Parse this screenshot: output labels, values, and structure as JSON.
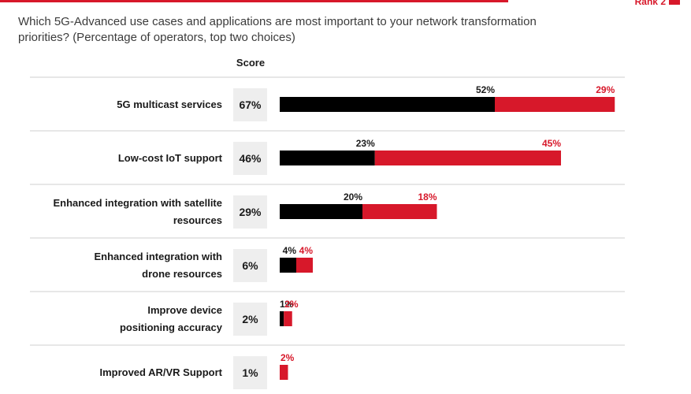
{
  "header": {
    "legend_rank2_label": "Rank 2",
    "question": "Which 5G-Advanced use cases and applications are most important to your network transformation priorities? (Percentage of operators, top two choices)"
  },
  "colors": {
    "rank1": "#000000",
    "rank2": "#d7182a",
    "score_box": "#eeeeee",
    "divider": "#cfcfcf"
  },
  "chart_data": {
    "type": "bar",
    "orientation": "horizontal",
    "stacked": true,
    "title": "",
    "score_header": "Score",
    "categories": [
      [
        "5G multicast services"
      ],
      [
        "Low-cost IoT support"
      ],
      [
        "Enhanced integration with satellite",
        "resources"
      ],
      [
        "Enhanced integration with",
        "drone resources"
      ],
      [
        "Improve device",
        "positioning accuracy"
      ],
      [
        "Improved AR/VR Support"
      ]
    ],
    "scores": [
      "67%",
      "46%",
      "29%",
      "6%",
      "2%",
      "1%"
    ],
    "series": [
      {
        "name": "",
        "color": "#000000",
        "values": [
          52,
          23,
          20,
          4,
          1,
          0
        ],
        "labels": [
          "52%",
          "23%",
          "20%",
          "4%",
          "1%",
          ""
        ]
      },
      {
        "name": "Rank 2",
        "color": "#d7182a",
        "values": [
          29,
          45,
          18,
          4,
          2,
          2
        ],
        "labels": [
          "29%",
          "45%",
          "18%",
          "4%",
          "2%",
          "2%"
        ]
      }
    ],
    "xlim": [
      0,
      81
    ]
  }
}
